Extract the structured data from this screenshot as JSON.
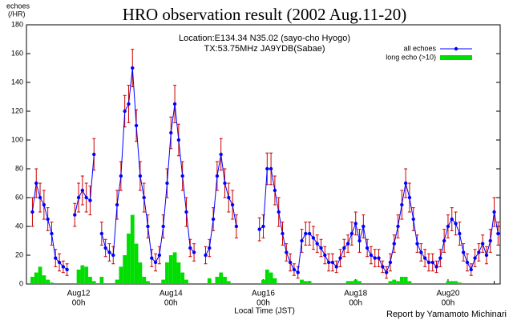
{
  "chart_data": {
    "type": "line",
    "title": "HRO observation result (2002 Aug.11-20)",
    "subtitle": [
      "Location:E134.34 N35.02 (sayo-cho Hyogo)",
      "TX:53.75MHz JA9YDB(Sabae)"
    ],
    "y_label": [
      "echoes",
      "(/HR)"
    ],
    "x_label": "Local Time (JST)",
    "footer": "Report by Yamamoto Michinari",
    "xlim": [
      -3.1,
      243.1
    ],
    "xticks": [
      {
        "value": 24,
        "label": "Aug12",
        "sublabel": "00h"
      },
      {
        "value": 72,
        "label": "Aug14",
        "sublabel": "00h"
      },
      {
        "value": 120,
        "label": "Aug16",
        "sublabel": "00h"
      },
      {
        "value": 168,
        "label": "Aug18",
        "sublabel": "00h"
      },
      {
        "value": 216,
        "label": "Aug20",
        "sublabel": "00h"
      }
    ],
    "x_minor_ticks": [
      0,
      48,
      96,
      144,
      192,
      240
    ],
    "ylim": [
      0,
      180
    ],
    "yticks": [
      0,
      20,
      40,
      60,
      80,
      100,
      120,
      140,
      160,
      180
    ],
    "legend": "top-right",
    "x": [
      0,
      2,
      4,
      6,
      8,
      10,
      12,
      14,
      16,
      18,
      20,
      22,
      24,
      26,
      28,
      30,
      32,
      34,
      36,
      38,
      40,
      42,
      44,
      46,
      48,
      50,
      52,
      54,
      56,
      58,
      60,
      62,
      64,
      66,
      68,
      70,
      72,
      74,
      76,
      78,
      80,
      82,
      84,
      86,
      88,
      90,
      92,
      94,
      96,
      98,
      100,
      102,
      104,
      106,
      108,
      110,
      112,
      114,
      116,
      118,
      120,
      122,
      124,
      126,
      128,
      130,
      132,
      134,
      136,
      138,
      140,
      142,
      144,
      146,
      148,
      150,
      152,
      154,
      156,
      158,
      160,
      162,
      164,
      166,
      168,
      170,
      172,
      174,
      176,
      178,
      180,
      182,
      184,
      186,
      188,
      190,
      192,
      194,
      196,
      198,
      200,
      202,
      204,
      206,
      208,
      210,
      212,
      214,
      216,
      218,
      220,
      222,
      224,
      226,
      228,
      230,
      232,
      234,
      236,
      238,
      240,
      242
    ],
    "series": [
      {
        "name": "all echoes",
        "color": "#0000ff",
        "error_color": "#cc0000",
        "values": [
          50,
          70,
          60,
          55,
          45,
          35,
          18,
          15,
          12,
          10,
          null,
          48,
          60,
          65,
          60,
          58,
          90,
          null,
          35,
          25,
          22,
          20,
          55,
          75,
          120,
          125,
          150,
          110,
          75,
          60,
          40,
          18,
          15,
          20,
          40,
          70,
          105,
          125,
          100,
          75,
          50,
          25,
          22,
          null,
          null,
          20,
          25,
          45,
          75,
          90,
          70,
          60,
          55,
          40,
          null,
          null,
          null,
          null,
          null,
          38,
          40,
          80,
          80,
          65,
          50,
          35,
          22,
          15,
          10,
          8,
          30,
          35,
          35,
          32,
          28,
          25,
          20,
          15,
          15,
          12,
          18,
          25,
          28,
          35,
          42,
          30,
          40,
          25,
          20,
          18,
          18,
          12,
          8,
          15,
          28,
          40,
          55,
          70,
          60,
          45,
          28,
          22,
          18,
          15,
          15,
          12,
          18,
          30,
          40,
          45,
          42,
          35,
          22,
          15,
          10,
          18,
          22,
          28,
          20,
          30,
          50,
          35
        ],
        "errors": [
          10,
          10,
          10,
          10,
          8,
          8,
          6,
          6,
          4,
          4,
          null,
          8,
          10,
          10,
          10,
          10,
          11,
          null,
          8,
          6,
          6,
          6,
          10,
          10,
          11,
          13,
          13,
          11,
          10,
          10,
          8,
          6,
          6,
          6,
          8,
          10,
          11,
          13,
          11,
          10,
          10,
          6,
          6,
          null,
          null,
          6,
          6,
          8,
          10,
          11,
          10,
          10,
          10,
          8,
          null,
          null,
          null,
          null,
          null,
          8,
          8,
          11,
          11,
          10,
          10,
          8,
          6,
          6,
          4,
          4,
          8,
          8,
          8,
          8,
          6,
          6,
          6,
          6,
          6,
          4,
          6,
          6,
          6,
          8,
          8,
          8,
          8,
          6,
          6,
          6,
          6,
          4,
          4,
          6,
          6,
          8,
          10,
          10,
          10,
          8,
          6,
          6,
          6,
          6,
          6,
          4,
          6,
          8,
          8,
          8,
          8,
          8,
          6,
          6,
          4,
          6,
          6,
          6,
          6,
          8,
          10,
          8
        ]
      },
      {
        "name": "long echo (>10)",
        "color": "#00dd00",
        "type": "bar",
        "values": [
          5,
          8,
          12,
          6,
          3,
          1,
          0,
          0,
          0,
          0,
          0,
          0,
          10,
          13,
          12,
          5,
          2,
          0,
          5,
          0,
          0,
          0,
          3,
          12,
          20,
          35,
          48,
          28,
          15,
          5,
          2,
          0,
          0,
          0,
          3,
          15,
          20,
          22,
          15,
          8,
          3,
          0,
          0,
          0,
          0,
          0,
          4,
          0,
          5,
          8,
          5,
          2,
          0,
          0,
          0,
          0,
          0,
          0,
          0,
          0,
          3,
          10,
          8,
          4,
          0,
          0,
          0,
          0,
          0,
          0,
          3,
          2,
          2,
          0,
          0,
          0,
          0,
          0,
          0,
          0,
          0,
          0,
          2,
          2,
          3,
          2,
          0,
          0,
          0,
          0,
          0,
          0,
          0,
          2,
          3,
          2,
          5,
          5,
          2,
          0,
          0,
          0,
          0,
          0,
          0,
          0,
          0,
          0,
          2,
          2,
          2,
          1,
          0,
          0,
          0,
          0,
          0,
          0,
          0,
          0,
          0,
          0
        ]
      }
    ]
  }
}
